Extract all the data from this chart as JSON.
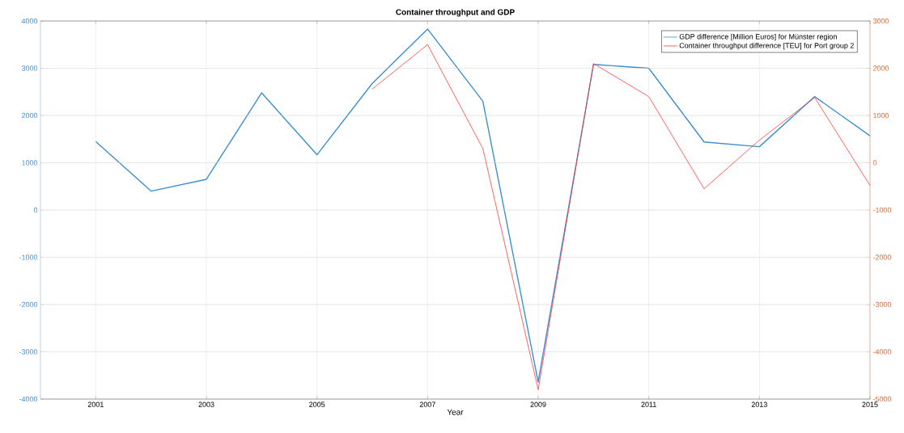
{
  "chart_data": {
    "type": "line",
    "title": "Container throughput and GDP",
    "xlabel": "Year",
    "x": [
      2001,
      2002,
      2003,
      2004,
      2005,
      2006,
      2007,
      2008,
      2009,
      2010,
      2011,
      2012,
      2013,
      2014,
      2015
    ],
    "xlim": [
      2000,
      2015
    ],
    "xticks": [
      2001,
      2003,
      2005,
      2007,
      2009,
      2011,
      2013,
      2015
    ],
    "ylim": [
      -4000,
      4000
    ],
    "yticks": [
      -4000,
      -3000,
      -2000,
      -1000,
      0,
      1000,
      2000,
      3000,
      4000
    ],
    "y2lim": [
      -5000,
      3000
    ],
    "y2ticks": [
      -5000,
      -4000,
      -3000,
      -2000,
      -1000,
      0,
      1000,
      2000,
      3000
    ],
    "grid": true,
    "legend": "top right",
    "series": [
      {
        "name": "GDP difference [Million Euros] for Münster region",
        "color": "#3d8fd1",
        "values": [
          1450,
          400,
          650,
          2480,
          1170,
          2680,
          3830,
          2300,
          -3640,
          3080,
          3000,
          1440,
          1340,
          2400,
          1570
        ]
      },
      {
        "name": "Container throughput difference [TEU] for Port group 2",
        "color": "#ff3b3b",
        "axis": "y2",
        "x": [
          2006,
          2007,
          2008,
          2009,
          2010,
          2011,
          2012,
          2013,
          2014,
          2015
        ],
        "values": [
          1560,
          2500,
          300,
          -4800,
          2100,
          1400,
          -550,
          480,
          1380,
          -480
        ]
      }
    ]
  }
}
